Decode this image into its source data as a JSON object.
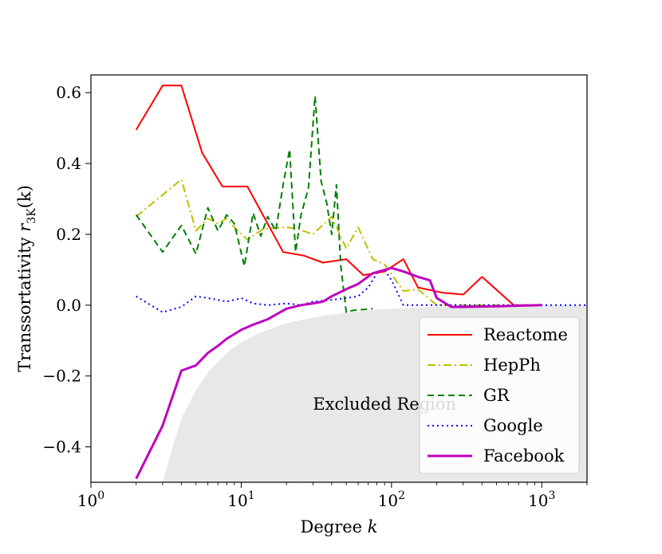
{
  "chart_data": {
    "type": "line",
    "xlabel": "Degree",
    "xlabel_var": "k",
    "ylabel": "Transsortativity",
    "ylabel_var": "r",
    "ylabel_sub": "3K",
    "ylabel_arg": "(k)",
    "xscale": "log",
    "xlim": [
      1,
      2000
    ],
    "ylim": [
      -0.5,
      0.65
    ],
    "grid": false,
    "legend_position": "lower-right",
    "x_ticks": [
      {
        "value": 1,
        "base": "10",
        "exp": "0"
      },
      {
        "value": 10,
        "base": "10",
        "exp": "1"
      },
      {
        "value": 100,
        "base": "10",
        "exp": "2"
      },
      {
        "value": 1000,
        "base": "10",
        "exp": "3"
      }
    ],
    "y_ticks": [
      {
        "value": 0.6,
        "label": "0.6"
      },
      {
        "value": 0.4,
        "label": "0.4"
      },
      {
        "value": 0.2,
        "label": "0.2"
      },
      {
        "value": 0.0,
        "label": "0.0"
      },
      {
        "value": -0.2,
        "label": "−0.2"
      },
      {
        "value": -0.4,
        "label": "−0.4"
      }
    ],
    "annotations": [
      {
        "text": "Excluded Region",
        "x": 30,
        "y": -0.28
      }
    ],
    "excluded_region": {
      "x": [
        3,
        3.5,
        4,
        5,
        6,
        7,
        8,
        10,
        13,
        16,
        20,
        25,
        30,
        40,
        50,
        70,
        100,
        150,
        200,
        300,
        500,
        1000,
        2000
      ],
      "y_lower": [
        -0.5,
        -0.4,
        -0.32,
        -0.24,
        -0.19,
        -0.16,
        -0.135,
        -0.105,
        -0.08,
        -0.065,
        -0.052,
        -0.042,
        -0.035,
        -0.026,
        -0.021,
        -0.015,
        -0.01,
        -0.007,
        -0.005,
        -0.0035,
        -0.002,
        -0.001,
        0.0
      ]
    },
    "series": [
      {
        "name": "Reactome",
        "color": "#ff0000",
        "dash": "solid",
        "width": 2,
        "x": [
          2,
          3,
          4,
          5.5,
          7.5,
          11,
          19,
          26,
          35,
          50,
          65,
          90,
          120,
          150,
          220,
          300,
          400,
          650,
          900
        ],
        "y": [
          0.495,
          0.62,
          0.62,
          0.43,
          0.335,
          0.335,
          0.15,
          0.14,
          0.12,
          0.13,
          0.085,
          0.095,
          0.13,
          0.05,
          0.035,
          0.03,
          0.08,
          0.0,
          0.0
        ]
      },
      {
        "name": "HepPh",
        "color": "#bfbf00",
        "dash": "dashdot",
        "width": 2,
        "x": [
          2,
          4,
          5,
          6,
          7,
          8,
          9,
          11,
          14,
          20,
          24,
          30,
          40,
          50,
          60,
          75,
          90,
          120,
          150,
          200,
          300,
          600
        ],
        "y": [
          0.25,
          0.355,
          0.21,
          0.245,
          0.23,
          0.245,
          0.22,
          0.185,
          0.215,
          0.22,
          0.215,
          0.2,
          0.25,
          0.16,
          0.22,
          0.13,
          0.115,
          0.04,
          0.045,
          0.0,
          0.0,
          0.0
        ]
      },
      {
        "name": "GR",
        "color": "#007f00",
        "dash": "dashed",
        "width": 2,
        "x": [
          2,
          3,
          4,
          5,
          6,
          7,
          8,
          9,
          10.5,
          12,
          13.5,
          15,
          17,
          19,
          21,
          23,
          25,
          28,
          31,
          34,
          37,
          40,
          43,
          46,
          50,
          55,
          75
        ],
        "y": [
          0.255,
          0.15,
          0.225,
          0.145,
          0.275,
          0.21,
          0.255,
          0.23,
          0.11,
          0.26,
          0.195,
          0.25,
          0.21,
          0.34,
          0.44,
          0.15,
          0.255,
          0.33,
          0.59,
          0.35,
          0.29,
          0.2,
          0.34,
          0.11,
          -0.02,
          -0.015,
          -0.01
        ]
      },
      {
        "name": "Google",
        "color": "#0000ff",
        "dash": "dotted",
        "width": 2,
        "x": [
          2,
          3,
          4,
          5,
          6,
          7,
          8,
          9,
          10,
          12,
          15,
          20,
          25,
          30,
          40,
          50,
          60,
          70,
          80,
          90,
          100,
          120,
          150,
          200,
          300,
          500,
          800,
          1300,
          2000
        ],
        "y": [
          0.025,
          -0.02,
          -0.005,
          0.025,
          0.02,
          0.015,
          0.01,
          0.015,
          0.02,
          0.005,
          0.0,
          0.005,
          0.0,
          0.01,
          0.015,
          0.02,
          0.025,
          0.05,
          0.09,
          0.1,
          0.07,
          0.0,
          0.0,
          0.0,
          0.0,
          0.0,
          0.0,
          0.0,
          0.0
        ]
      },
      {
        "name": "Facebook",
        "color": "#bf00bf",
        "dash": "solid",
        "width": 3,
        "x": [
          2,
          3,
          4,
          5,
          6,
          7,
          8,
          10,
          12,
          15,
          20,
          25,
          30,
          35,
          40,
          50,
          60,
          75,
          100,
          120,
          150,
          180,
          200,
          250,
          300,
          500,
          1000
        ],
        "y": [
          -0.49,
          -0.34,
          -0.185,
          -0.17,
          -0.135,
          -0.115,
          -0.095,
          -0.07,
          -0.055,
          -0.04,
          -0.01,
          0.0,
          0.005,
          0.01,
          0.025,
          0.045,
          0.06,
          0.09,
          0.105,
          0.095,
          0.08,
          0.07,
          0.02,
          -0.005,
          -0.005,
          -0.003,
          0.0
        ]
      }
    ]
  }
}
